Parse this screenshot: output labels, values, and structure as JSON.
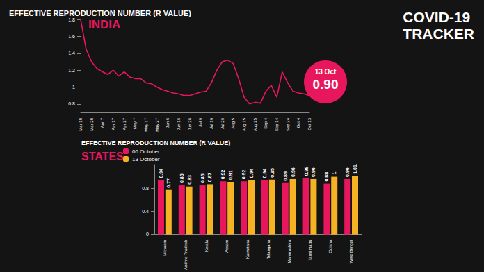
{
  "header": {
    "title_lines": [
      "COVID-19",
      "TRACKER"
    ]
  },
  "badge": {
    "date": "13 Oct",
    "value": "0.90"
  },
  "chart_data": [
    {
      "type": "line",
      "title": "EFFECTIVE REPRODUCTION NUMBER (R VALUE)",
      "subtitle": "INDIA",
      "categories": [
        "Mar 18",
        null,
        "Mar 28",
        null,
        "Apr 7",
        null,
        "Apr 17",
        null,
        "Apr 27",
        null,
        "May 7",
        null,
        "May 17",
        null,
        "May 27",
        null,
        "Jun 6",
        null,
        "Jun 16",
        null,
        "Jun 26",
        null,
        "Jul 6",
        null,
        "Jul 16",
        null,
        "Jul 26",
        null,
        "Aug 5",
        null,
        "Aug 15",
        null,
        "Aug 25",
        null,
        "Sep 4",
        null,
        "Sep 14",
        null,
        "Sep 24",
        null,
        "Oct 4",
        null,
        "Oct 13"
      ],
      "values": [
        1.8,
        1.45,
        1.3,
        1.22,
        1.18,
        1.15,
        1.2,
        1.13,
        1.18,
        1.12,
        1.1,
        1.1,
        1.05,
        1.04,
        1.0,
        0.97,
        0.95,
        0.93,
        0.92,
        0.9,
        0.9,
        0.92,
        0.94,
        0.95,
        1.05,
        1.2,
        1.3,
        1.32,
        1.28,
        1.1,
        0.88,
        0.8,
        0.82,
        0.81,
        0.95,
        1.02,
        0.88,
        1.18,
        1.05,
        0.95,
        0.93,
        0.92,
        0.9
      ],
      "color": "#e8175d",
      "ylim": [
        0.7,
        1.9
      ],
      "yticks": [
        0.8,
        1,
        1.2,
        1.4,
        1.6,
        1.8
      ],
      "grid": false
    },
    {
      "type": "bar",
      "title": "EFFECTIVE REPRODUCTION NUMBER (R VALUE)",
      "subtitle": "STATES",
      "categories": [
        "Mizoram",
        "Andhra Pradesh",
        "Kerala",
        "Assam",
        "Karnataka",
        "Telangana",
        "Maharashtra",
        "Tamil Nadu",
        "Odisha",
        "West Bengal"
      ],
      "series": [
        {
          "name": "06 October",
          "color": "#e8175d",
          "values": [
            0.94,
            0.85,
            0.85,
            0.92,
            0.92,
            0.94,
            0.89,
            0.98,
            0.88,
            0.96
          ]
        },
        {
          "name": "13 October",
          "color": "#f5b323",
          "values": [
            0.77,
            0.83,
            0.87,
            0.91,
            0.94,
            0.95,
            0.96,
            0.96,
            1,
            1.01
          ]
        }
      ],
      "ylim": [
        0,
        1.2
      ],
      "yticks": [
        0,
        0.4,
        0.8
      ],
      "data_labels": true,
      "legend": "top-left",
      "grid": false
    }
  ]
}
